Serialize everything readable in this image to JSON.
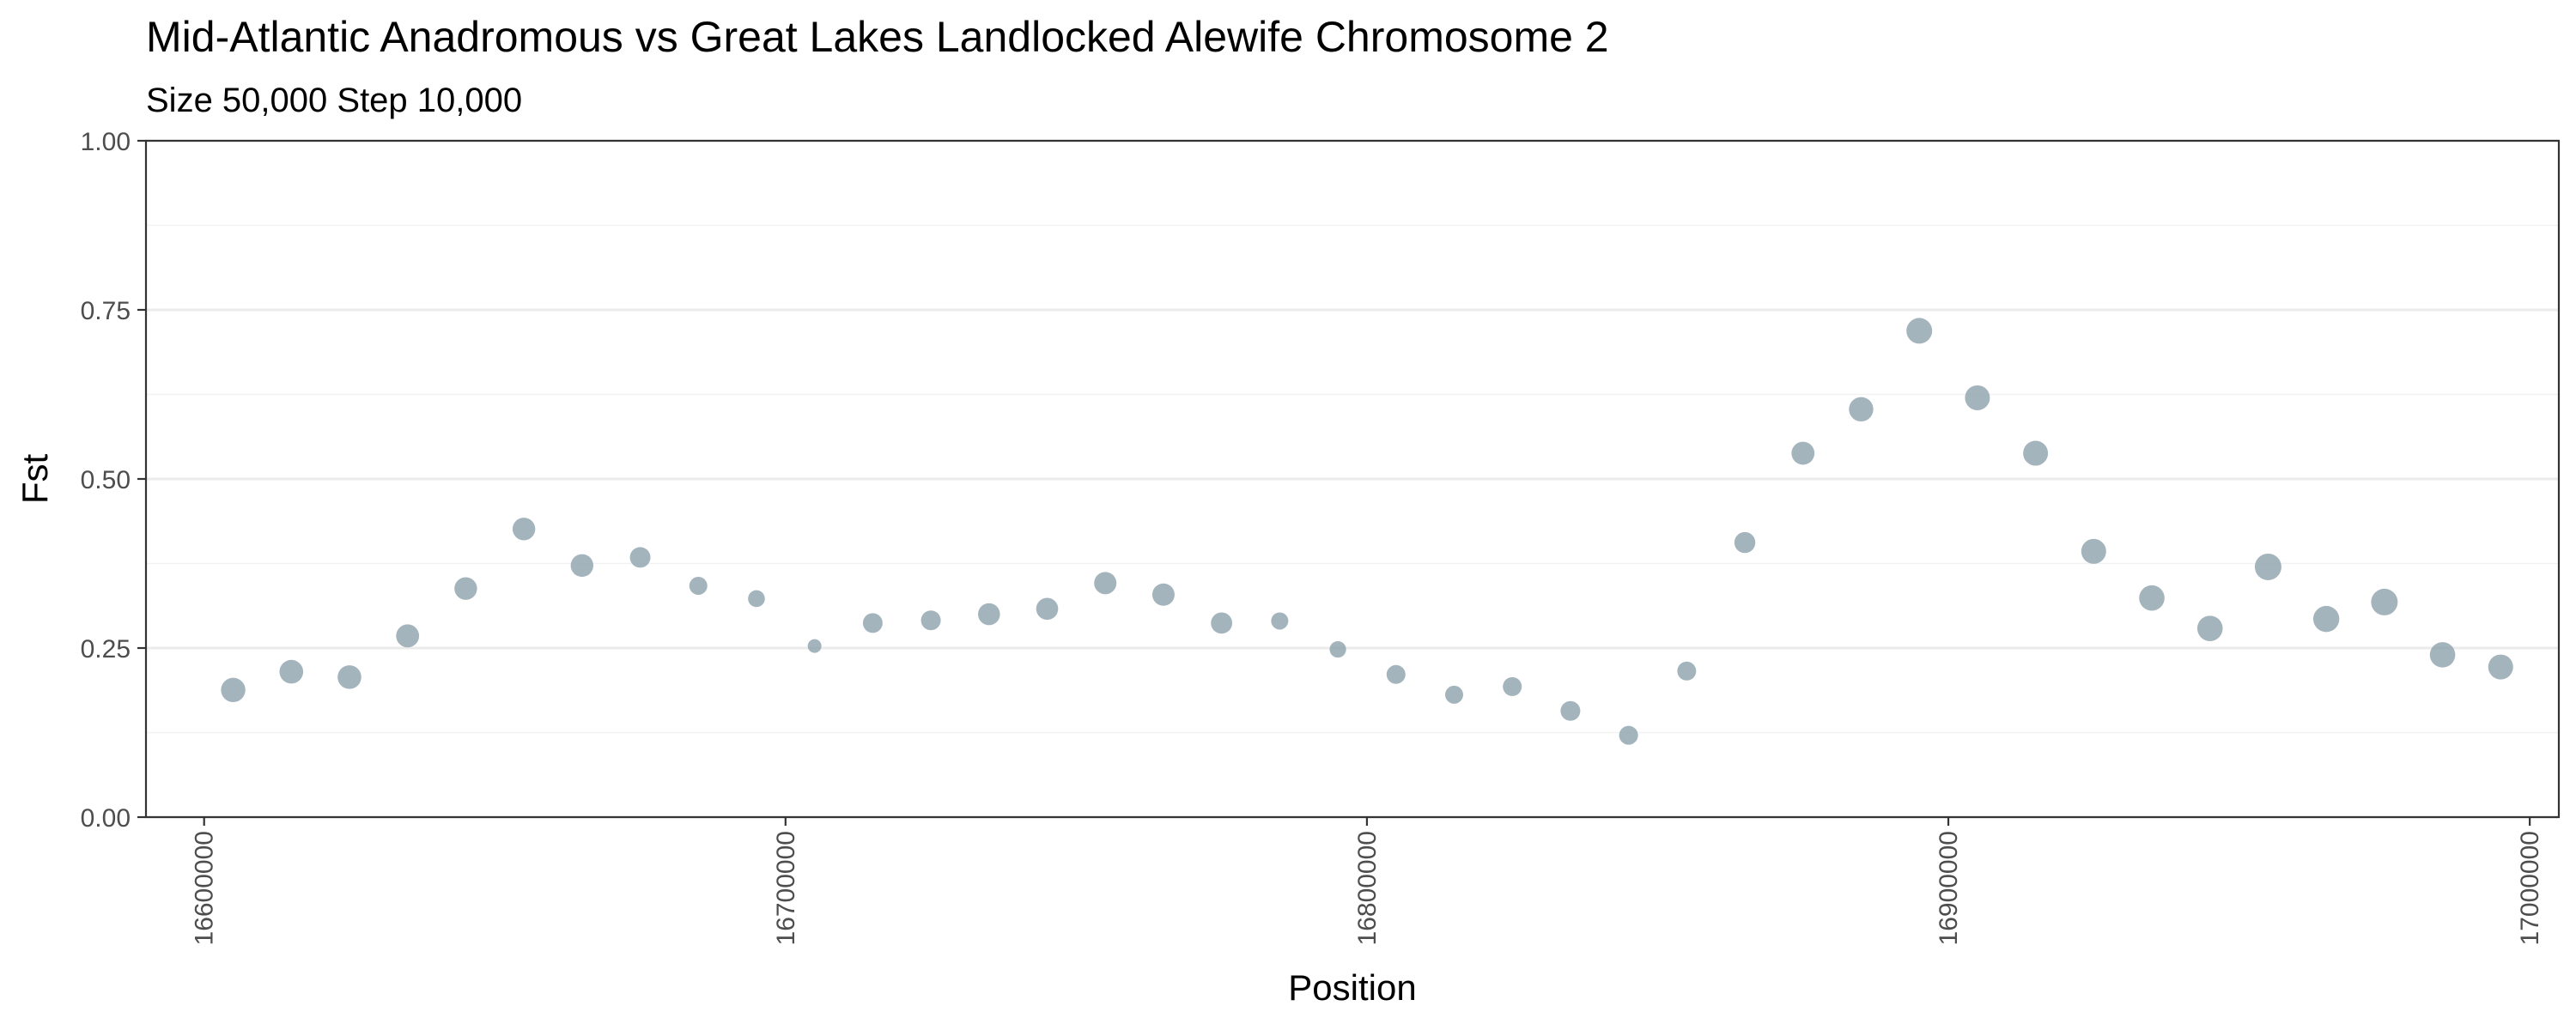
{
  "chart_data": {
    "type": "scatter",
    "title": "Mid-Atlantic Anadromous vs Great Lakes Landlocked Alewife Chromosome 2",
    "subtitle": "Size 50,000 Step 10,000",
    "xlabel": "Position",
    "ylabel": "Fst",
    "xlim": [
      16590000,
      17005000
    ],
    "ylim": [
      0,
      1
    ],
    "x_ticks": [
      16600000,
      16700000,
      16800000,
      16900000,
      17000000
    ],
    "x_tick_labels": [
      "16600000",
      "16700000",
      "16800000",
      "16900000",
      "17000000"
    ],
    "y_ticks": [
      0,
      0.25,
      0.5,
      0.75,
      1
    ],
    "y_tick_labels": [
      "0.00",
      "0.25",
      "0.50",
      "0.75",
      "1.00"
    ],
    "grid": true,
    "point_color": "#8da1ab",
    "series": [
      {
        "points": [
          {
            "x": 16605000,
            "y": 0.188,
            "size": 0.82
          },
          {
            "x": 16615000,
            "y": 0.215,
            "size": 0.78
          },
          {
            "x": 16625000,
            "y": 0.207,
            "size": 0.78
          },
          {
            "x": 16635000,
            "y": 0.268,
            "size": 0.74
          },
          {
            "x": 16645000,
            "y": 0.338,
            "size": 0.72
          },
          {
            "x": 16655000,
            "y": 0.426,
            "size": 0.72
          },
          {
            "x": 16665000,
            "y": 0.372,
            "size": 0.72
          },
          {
            "x": 16675000,
            "y": 0.384,
            "size": 0.6
          },
          {
            "x": 16685000,
            "y": 0.342,
            "size": 0.45
          },
          {
            "x": 16695000,
            "y": 0.323,
            "size": 0.38
          },
          {
            "x": 16705000,
            "y": 0.253,
            "size": 0.2
          },
          {
            "x": 16715000,
            "y": 0.287,
            "size": 0.55
          },
          {
            "x": 16725000,
            "y": 0.291,
            "size": 0.55
          },
          {
            "x": 16735000,
            "y": 0.3,
            "size": 0.68
          },
          {
            "x": 16745000,
            "y": 0.308,
            "size": 0.68
          },
          {
            "x": 16755000,
            "y": 0.346,
            "size": 0.7
          },
          {
            "x": 16765000,
            "y": 0.329,
            "size": 0.7
          },
          {
            "x": 16775000,
            "y": 0.287,
            "size": 0.64
          },
          {
            "x": 16785000,
            "y": 0.29,
            "size": 0.4
          },
          {
            "x": 16795000,
            "y": 0.248,
            "size": 0.36
          },
          {
            "x": 16805000,
            "y": 0.211,
            "size": 0.5
          },
          {
            "x": 16815000,
            "y": 0.181,
            "size": 0.45
          },
          {
            "x": 16825000,
            "y": 0.193,
            "size": 0.5
          },
          {
            "x": 16835000,
            "y": 0.157,
            "size": 0.55
          },
          {
            "x": 16845000,
            "y": 0.121,
            "size": 0.5
          },
          {
            "x": 16855000,
            "y": 0.216,
            "size": 0.5
          },
          {
            "x": 16865000,
            "y": 0.406,
            "size": 0.62
          },
          {
            "x": 16875000,
            "y": 0.538,
            "size": 0.74
          },
          {
            "x": 16885000,
            "y": 0.603,
            "size": 0.82
          },
          {
            "x": 16895000,
            "y": 0.719,
            "size": 0.9
          },
          {
            "x": 16905000,
            "y": 0.62,
            "size": 0.85
          },
          {
            "x": 16915000,
            "y": 0.538,
            "size": 0.85
          },
          {
            "x": 16925000,
            "y": 0.393,
            "size": 0.85
          },
          {
            "x": 16935000,
            "y": 0.324,
            "size": 0.88
          },
          {
            "x": 16945000,
            "y": 0.279,
            "size": 0.88
          },
          {
            "x": 16955000,
            "y": 0.37,
            "size": 0.95
          },
          {
            "x": 16965000,
            "y": 0.293,
            "size": 0.92
          },
          {
            "x": 16975000,
            "y": 0.318,
            "size": 0.95
          },
          {
            "x": 16985000,
            "y": 0.24,
            "size": 0.88
          },
          {
            "x": 16995000,
            "y": 0.222,
            "size": 0.85
          }
        ]
      }
    ]
  }
}
